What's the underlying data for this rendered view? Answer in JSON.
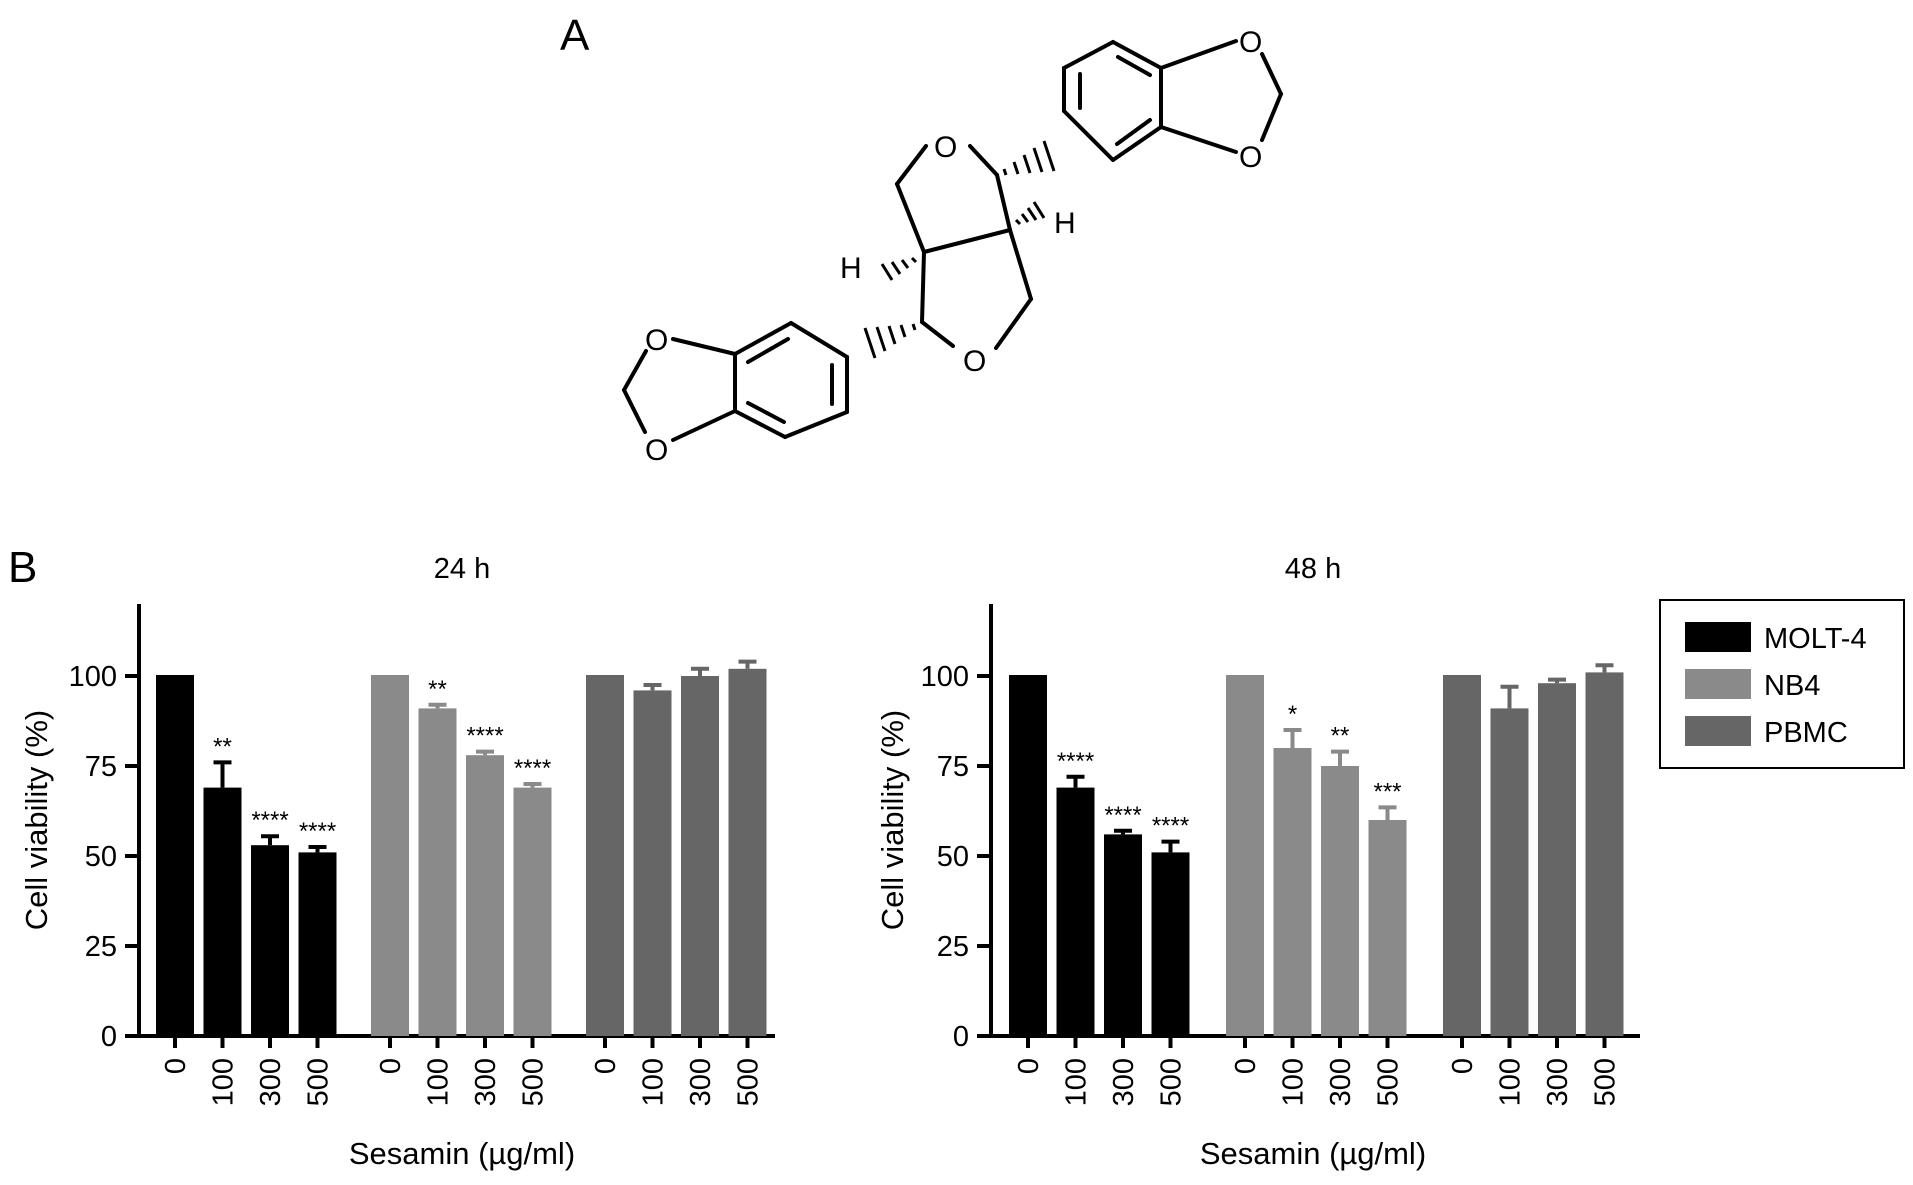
{
  "panel_a": {
    "label": "A",
    "atoms": {
      "o_ring_top": "O",
      "o_ring_bottom": "O",
      "o_dioxole_right_1": "O",
      "o_dioxole_right_2": "O",
      "o_dioxole_left_1": "O",
      "o_dioxole_left_2": "O",
      "h_right": "H",
      "h_left": "H"
    }
  },
  "panel_b": {
    "label": "B",
    "legend": [
      "MOLT-4",
      "NB4",
      "PBMC"
    ]
  },
  "colors": {
    "MOLT-4": "#000000",
    "NB4": "#8a8a8a",
    "PBMC": "#666666"
  },
  "chart_data": [
    {
      "type": "bar",
      "title": "24 h",
      "xlabel": "Sesamin (µg/ml)",
      "ylabel": "Cell viability (%)",
      "ylim": [
        0,
        120
      ],
      "yticks": [
        0,
        25,
        50,
        75,
        100
      ],
      "categories": [
        "0",
        "100",
        "300",
        "500"
      ],
      "series": [
        {
          "name": "MOLT-4",
          "values": [
            100,
            69,
            53,
            51
          ],
          "errors": [
            0,
            7,
            2.5,
            1.5
          ],
          "significance": [
            "",
            "**",
            "****",
            "****"
          ]
        },
        {
          "name": "NB4",
          "values": [
            100,
            91,
            78,
            69
          ],
          "errors": [
            0,
            1,
            1,
            1
          ],
          "significance": [
            "",
            "**",
            "****",
            "****"
          ]
        },
        {
          "name": "PBMC",
          "values": [
            100,
            96,
            100,
            102
          ],
          "errors": [
            0,
            1.5,
            2,
            2
          ],
          "significance": [
            "",
            "",
            "",
            ""
          ]
        }
      ]
    },
    {
      "type": "bar",
      "title": "48 h",
      "xlabel": "Sesamin (µg/ml)",
      "ylabel": "Cell viability (%)",
      "ylim": [
        0,
        120
      ],
      "yticks": [
        0,
        25,
        50,
        75,
        100
      ],
      "categories": [
        "0",
        "100",
        "300",
        "500"
      ],
      "series": [
        {
          "name": "MOLT-4",
          "values": [
            100,
            69,
            56,
            51
          ],
          "errors": [
            0,
            3,
            1,
            3
          ],
          "significance": [
            "",
            "****",
            "****",
            "****"
          ]
        },
        {
          "name": "NB4",
          "values": [
            100,
            80,
            75,
            60
          ],
          "errors": [
            0,
            5,
            4,
            3.5
          ],
          "significance": [
            "",
            "*",
            "**",
            "***"
          ]
        },
        {
          "name": "PBMC",
          "values": [
            100,
            91,
            98,
            101
          ],
          "errors": [
            0,
            6,
            1,
            2
          ],
          "significance": [
            "",
            "",
            "",
            ""
          ]
        }
      ]
    }
  ]
}
